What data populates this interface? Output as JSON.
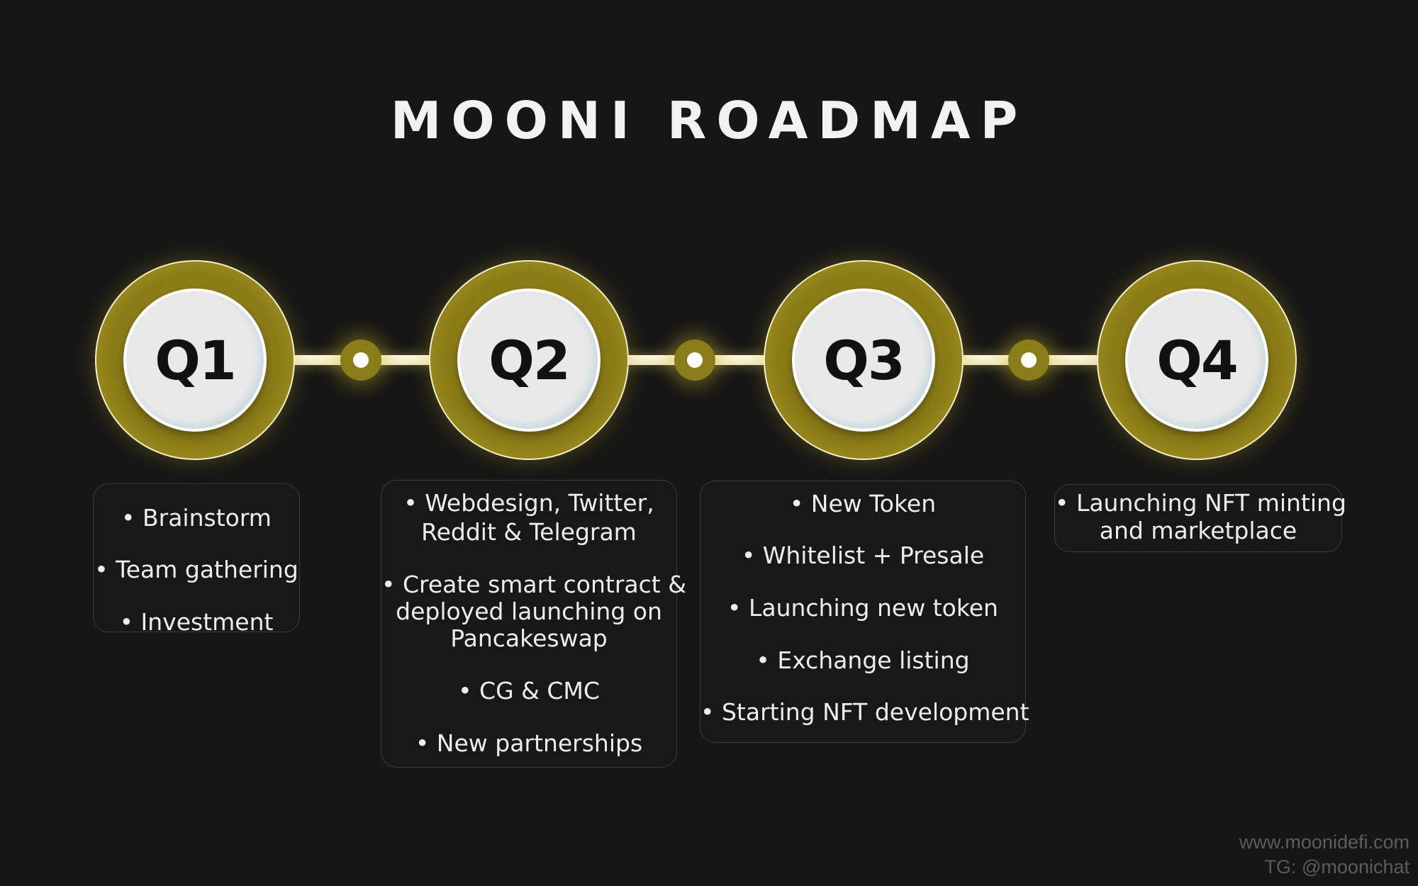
{
  "title": "MOONI ROADMAP",
  "colors": {
    "background": "#161616",
    "accent_gold": "#8a7c18",
    "connector": "#fff8df",
    "badge_inner": "#e9e9e9",
    "text": "#ededed"
  },
  "quarters": [
    {
      "label": "Q1",
      "items": [
        "• Brainstorm",
        "• Team gathering",
        "• Investment"
      ]
    },
    {
      "label": "Q2",
      "items": [
        "• Webdesign, Twitter,",
        "Reddit & Telegram",
        "• Create smart contract &",
        "deployed launching on",
        "Pancakeswap",
        "• CG & CMC",
        "• New partnerships"
      ]
    },
    {
      "label": "Q3",
      "items": [
        "• New Token",
        "• Whitelist + Presale",
        "• Launching new token",
        "• Exchange listing",
        "• Starting NFT development"
      ]
    },
    {
      "label": "Q4",
      "items": [
        "• Launching NFT minting",
        "and marketplace"
      ]
    }
  ],
  "footer": {
    "website": "www.moonidefi.com",
    "telegram": "TG: @moonichat"
  }
}
